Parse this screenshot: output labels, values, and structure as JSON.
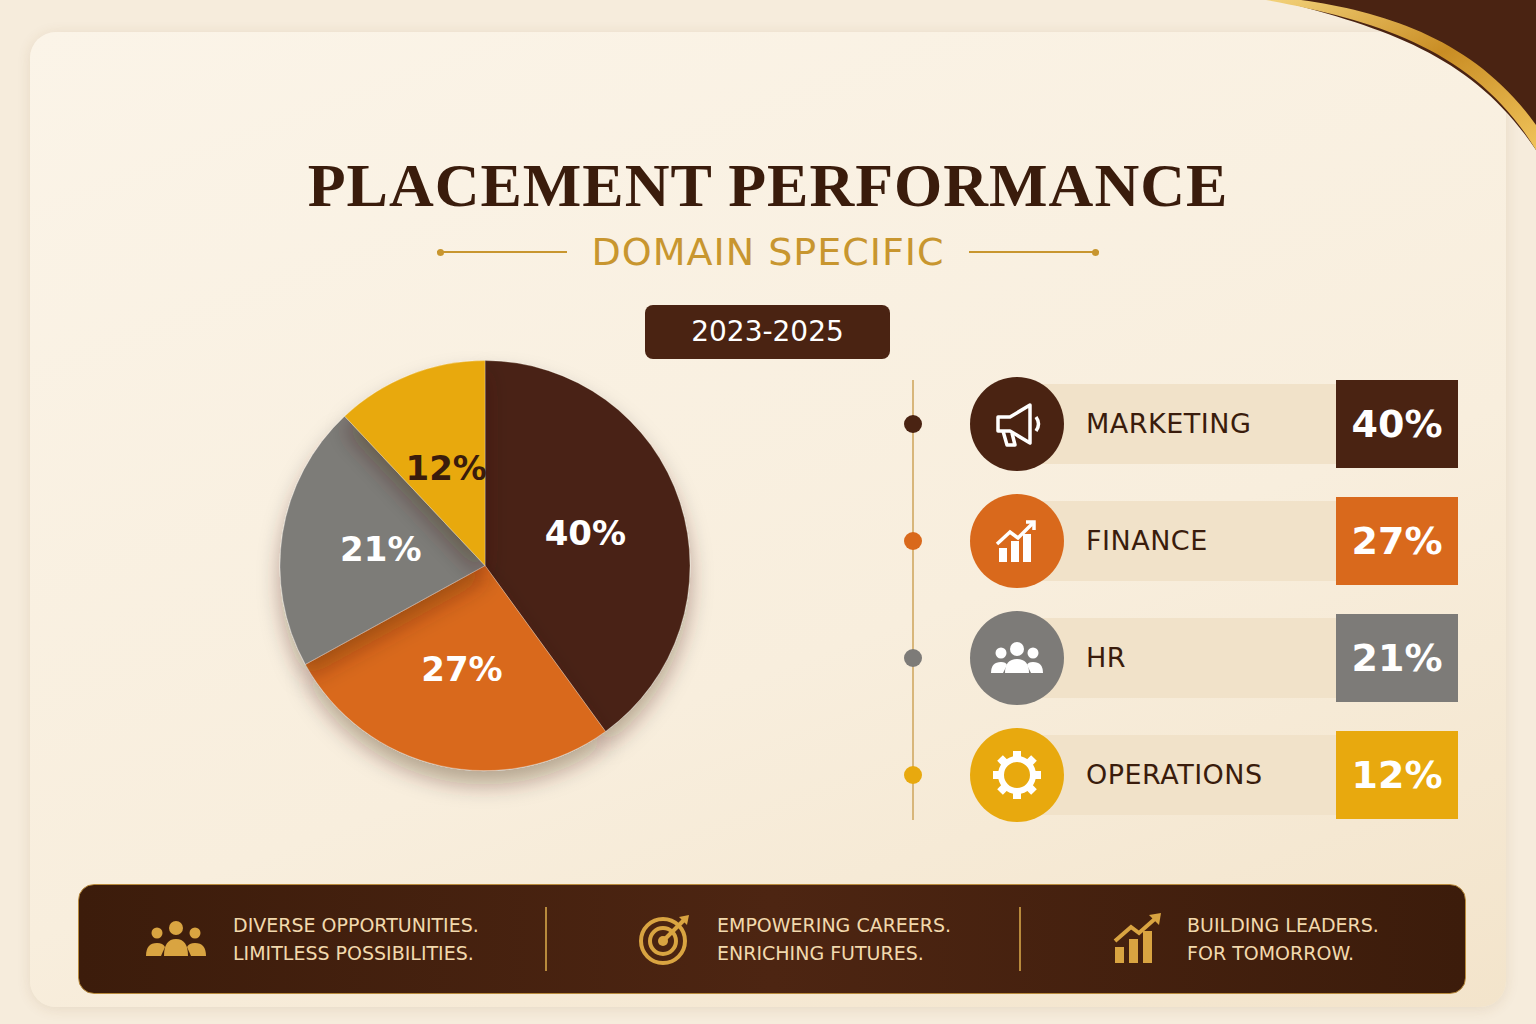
{
  "chart_data": {
    "type": "pie",
    "title": "PLACEMENT PERFORMANCE",
    "subtitle": "DOMAIN SPECIFIC",
    "period": "2023-2025",
    "categories": [
      "MARKETING",
      "FINANCE",
      "HR",
      "OPERATIONS"
    ],
    "values": [
      40,
      27,
      21,
      12
    ],
    "value_labels": [
      "40%",
      "27%",
      "21%",
      "12%"
    ],
    "colors": [
      "#4a2312",
      "#d9691c",
      "#7d7b78",
      "#e8a90e"
    ],
    "data_labels": true,
    "legend": "right"
  },
  "footer": [
    [
      "DIVERSE OPPORTUNITIES.",
      "LIMITLESS POSSIBILITIES."
    ],
    [
      "EMPOWERING CAREERS.",
      "ENRICHING FUTURES."
    ],
    [
      "BUILDING LEADERS.",
      "FOR TOMORROW."
    ]
  ]
}
